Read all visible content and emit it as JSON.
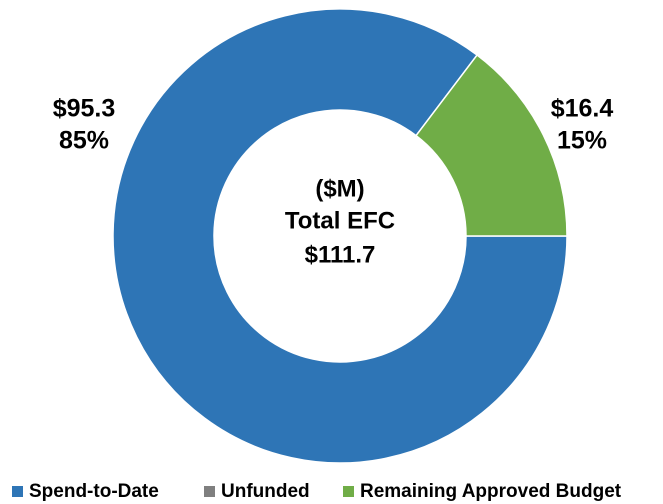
{
  "chart_data": {
    "type": "donut",
    "center_text": [
      "($M)",
      "Total EFC",
      "$111.7"
    ],
    "categories": [
      "Spend-to-Date",
      "Unfunded",
      "Remaining Approved Budget"
    ],
    "values": [
      95.3,
      0,
      16.4
    ],
    "value_labels": [
      "$95.3",
      null,
      "$16.4"
    ],
    "percent_labels": [
      "85%",
      null,
      "15%"
    ],
    "colors": [
      "#2e75b6",
      "#7f7f7f",
      "#70ad47"
    ],
    "legend": "bottom"
  }
}
